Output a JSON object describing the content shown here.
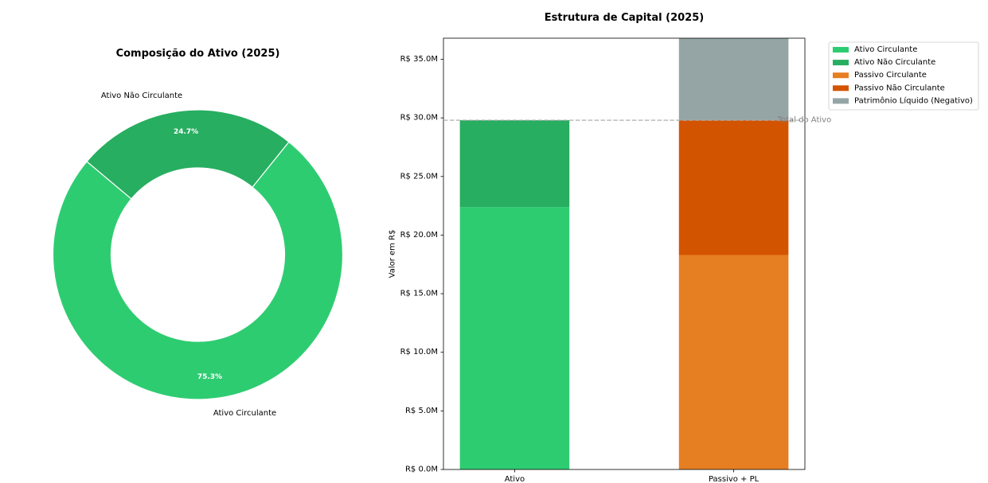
{
  "chart_data": [
    {
      "type": "pie",
      "donut": true,
      "title": "Composição do Ativo (2025)",
      "labels": [
        "Ativo Circulante",
        "Ativo Não Circulante"
      ],
      "values": [
        75.3,
        24.7
      ],
      "value_labels": [
        "75.3%",
        "24.7%"
      ],
      "colors": [
        "#2ecc71",
        "#27ae60"
      ]
    },
    {
      "type": "bar",
      "stacked": true,
      "title": "Estrutura de Capital (2025)",
      "ylabel": "Valor em R$",
      "categories": [
        "Ativo",
        "Passivo + PL"
      ],
      "series": [
        {
          "name": "Ativo Circulante",
          "color": "#2ecc71",
          "values": [
            22.4,
            0
          ]
        },
        {
          "name": "Ativo Não Circulante",
          "color": "#27ae60",
          "values": [
            7.4,
            0
          ]
        },
        {
          "name": "Passivo Circulante",
          "color": "#e67e22",
          "values": [
            0,
            18.3
          ]
        },
        {
          "name": "Passivo Não Circulante",
          "color": "#d35400",
          "values": [
            0,
            11.5
          ]
        },
        {
          "name": "Patrimônio Líquido (Negativo)",
          "color": "#95a5a6",
          "values": [
            0,
            7.0
          ]
        }
      ],
      "ylim": [
        0,
        36.8
      ],
      "yticks": [
        0,
        5,
        10,
        15,
        20,
        25,
        30,
        35
      ],
      "ytick_labels": [
        "R$ 0.0M",
        "R$ 5.0M",
        "R$ 10.0M",
        "R$ 15.0M",
        "R$ 20.0M",
        "R$ 25.0M",
        "R$ 30.0M",
        "R$ 35.0M"
      ],
      "reference_line": {
        "value": 29.8,
        "label": "Total do Ativo",
        "style": "dashed",
        "color": "#aaaaaa"
      },
      "legend": "outside-top-right",
      "grid": false
    }
  ]
}
